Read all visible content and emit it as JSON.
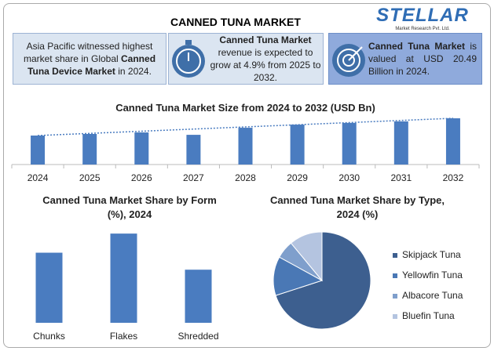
{
  "title": "CANNED TUNA MARKET",
  "logo": {
    "name": "STELLAR",
    "tagline": "Market Research Pvt. Ltd."
  },
  "info_boxes": [
    {
      "parts": [
        {
          "text": "Asia Pacific witnessed highest market share in Global ",
          "bold": false
        },
        {
          "text": "Canned Tuna Device Market",
          "bold": true
        },
        {
          "text": " in 2024.",
          "bold": false
        }
      ]
    },
    {
      "parts": [
        {
          "text": "Canned Tuna Market",
          "bold": true
        },
        {
          "text": " revenue is expected to grow at 4.9% from 2025 to 2032.",
          "bold": false
        }
      ]
    },
    {
      "parts": [
        {
          "text": "Canned Tuna Market",
          "bold": true
        },
        {
          "text": " is valued at USD 20.49 Billion in 2024.",
          "bold": false
        }
      ]
    }
  ],
  "chart_data": [
    {
      "type": "bar",
      "title": "Canned Tuna Market Size from 2024 to 2032 (USD Bn)",
      "categories": [
        "2024",
        "2025",
        "2026",
        "2027",
        "2028",
        "2029",
        "2030",
        "2031",
        "2032"
      ],
      "values": [
        20.49,
        21.6,
        22.7,
        21.0,
        26.0,
        28.2,
        29.4,
        30.5,
        32.7
      ],
      "color": "#4a7cc0",
      "ylim": [
        0,
        36
      ],
      "trend_line": true
    },
    {
      "type": "bar",
      "title": "Canned Tuna Market Share by Form (%), 2024",
      "categories": [
        "Chunks",
        "Flakes",
        "Shredded"
      ],
      "values": [
        33,
        42,
        25
      ],
      "color": "#4a7cc0",
      "ylim": [
        0,
        45
      ],
      "trend_line": false
    },
    {
      "type": "pie",
      "title": "Canned Tuna Market Share by Type, 2024 (%)",
      "categories": [
        "Skipjack Tuna",
        "Yellowfin Tuna",
        "Albacore Tuna",
        "Bluefin Tuna"
      ],
      "values": [
        70,
        13,
        6,
        11
      ],
      "colors": [
        "#3d5f8f",
        "#4a78b5",
        "#7f9fcc",
        "#b4c4e0"
      ],
      "legend": "right"
    }
  ]
}
